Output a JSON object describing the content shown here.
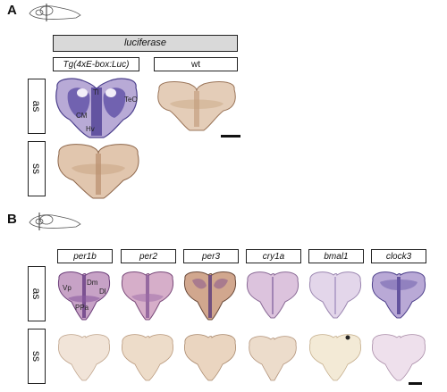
{
  "panel_a": {
    "letter": "A",
    "header": "luciferase",
    "columns": [
      "Tg(4xE-box:Luc)",
      "wt"
    ],
    "rows": [
      "as",
      "ss"
    ],
    "annotations": [
      "Tl",
      "TeO",
      "CM",
      "Hv"
    ]
  },
  "panel_b": {
    "letter": "B",
    "columns": [
      "per1b",
      "per2",
      "per3",
      "cry1a",
      "bmal1",
      "clock3"
    ],
    "rows": [
      "as",
      "ss"
    ],
    "annotations": [
      "Dm",
      "Vp",
      "Dl",
      "PPa"
    ]
  },
  "colors": {
    "purple_stain": "#6b5cae",
    "brown_tissue": "#c9a98a",
    "header_gray": "#d9d9d9"
  }
}
